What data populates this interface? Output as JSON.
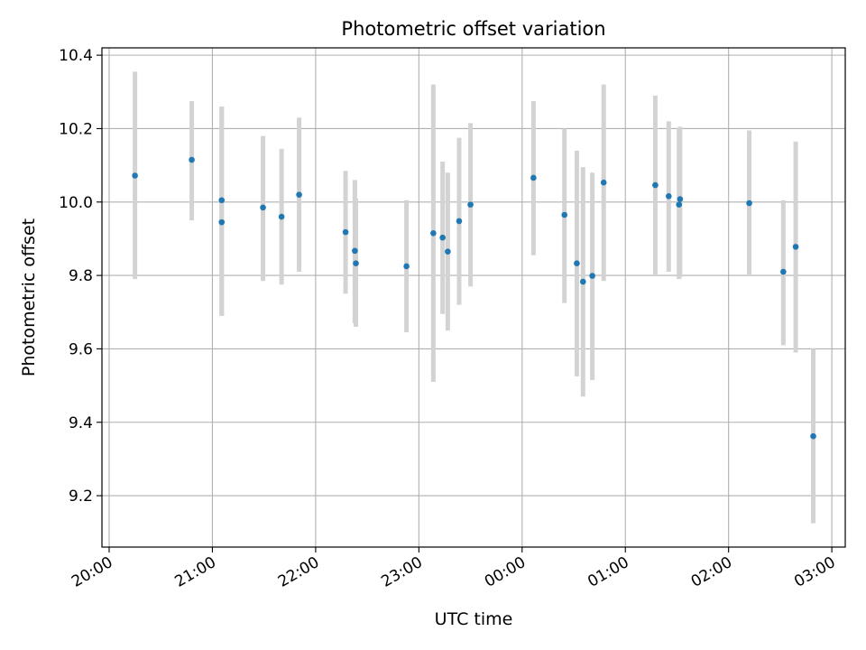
{
  "chart_data": {
    "type": "scatter",
    "title": "Photometric offset variation",
    "xlabel": "UTC time",
    "ylabel": "Photometric offset",
    "x_unit": "UTC hours (values past 24 are after midnight)",
    "xlim": [
      19.93,
      27.13
    ],
    "ylim": [
      9.06,
      10.42
    ],
    "x_ticks": [
      {
        "value": 20,
        "label": "20:00"
      },
      {
        "value": 21,
        "label": "21:00"
      },
      {
        "value": 22,
        "label": "22:00"
      },
      {
        "value": 23,
        "label": "23:00"
      },
      {
        "value": 24,
        "label": "00:00"
      },
      {
        "value": 25,
        "label": "01:00"
      },
      {
        "value": 26,
        "label": "02:00"
      },
      {
        "value": 27,
        "label": "03:00"
      }
    ],
    "y_ticks": [
      {
        "value": 9.2,
        "label": "9.2"
      },
      {
        "value": 9.4,
        "label": "9.4"
      },
      {
        "value": 9.6,
        "label": "9.6"
      },
      {
        "value": 9.8,
        "label": "9.8"
      },
      {
        "value": 10.0,
        "label": "10.0"
      },
      {
        "value": 10.2,
        "label": "10.2"
      },
      {
        "value": 10.4,
        "label": "10.4"
      }
    ],
    "grid": true,
    "marker_color": "#1f77b4",
    "errorbar_color": "#d3d3d3",
    "points": [
      {
        "x": 20.25,
        "y": 10.072,
        "low": 9.79,
        "high": 10.355
      },
      {
        "x": 20.8,
        "y": 10.115,
        "low": 9.95,
        "high": 10.275
      },
      {
        "x": 21.09,
        "y": 10.005,
        "low": 9.69,
        "high": 10.26
      },
      {
        "x": 21.09,
        "y": 9.945,
        "low": 9.69,
        "high": 10.26
      },
      {
        "x": 21.49,
        "y": 9.985,
        "low": 9.785,
        "high": 10.18
      },
      {
        "x": 21.67,
        "y": 9.96,
        "low": 9.775,
        "high": 10.145
      },
      {
        "x": 21.84,
        "y": 10.02,
        "low": 9.81,
        "high": 10.23
      },
      {
        "x": 22.29,
        "y": 9.918,
        "low": 9.75,
        "high": 10.085
      },
      {
        "x": 22.38,
        "y": 9.867,
        "low": 9.67,
        "high": 10.06
      },
      {
        "x": 22.39,
        "y": 9.833,
        "low": 9.66,
        "high": 10.01
      },
      {
        "x": 22.88,
        "y": 9.825,
        "low": 9.645,
        "high": 10.005
      },
      {
        "x": 23.14,
        "y": 9.915,
        "low": 9.51,
        "high": 10.32
      },
      {
        "x": 23.23,
        "y": 9.903,
        "low": 9.695,
        "high": 10.11
      },
      {
        "x": 23.28,
        "y": 9.865,
        "low": 9.65,
        "high": 10.08
      },
      {
        "x": 23.39,
        "y": 9.948,
        "low": 9.72,
        "high": 10.175
      },
      {
        "x": 23.5,
        "y": 9.993,
        "low": 9.77,
        "high": 10.215
      },
      {
        "x": 24.11,
        "y": 10.066,
        "low": 9.855,
        "high": 10.275
      },
      {
        "x": 24.41,
        "y": 9.965,
        "low": 9.725,
        "high": 10.2
      },
      {
        "x": 24.53,
        "y": 9.833,
        "low": 9.525,
        "high": 10.14
      },
      {
        "x": 24.59,
        "y": 9.783,
        "low": 9.47,
        "high": 10.095
      },
      {
        "x": 24.68,
        "y": 9.799,
        "low": 9.515,
        "high": 10.08
      },
      {
        "x": 24.79,
        "y": 10.053,
        "low": 9.785,
        "high": 10.32
      },
      {
        "x": 25.29,
        "y": 10.046,
        "low": 9.8,
        "high": 10.29
      },
      {
        "x": 25.42,
        "y": 10.016,
        "low": 9.81,
        "high": 10.22
      },
      {
        "x": 25.52,
        "y": 9.993,
        "low": 9.79,
        "high": 10.2
      },
      {
        "x": 25.53,
        "y": 10.008,
        "low": 9.795,
        "high": 10.205
      },
      {
        "x": 26.2,
        "y": 9.997,
        "low": 9.8,
        "high": 10.195
      },
      {
        "x": 26.53,
        "y": 9.81,
        "low": 9.61,
        "high": 10.005
      },
      {
        "x": 26.65,
        "y": 9.878,
        "low": 9.59,
        "high": 10.165
      },
      {
        "x": 26.82,
        "y": 9.362,
        "low": 9.125,
        "high": 9.6
      }
    ]
  }
}
